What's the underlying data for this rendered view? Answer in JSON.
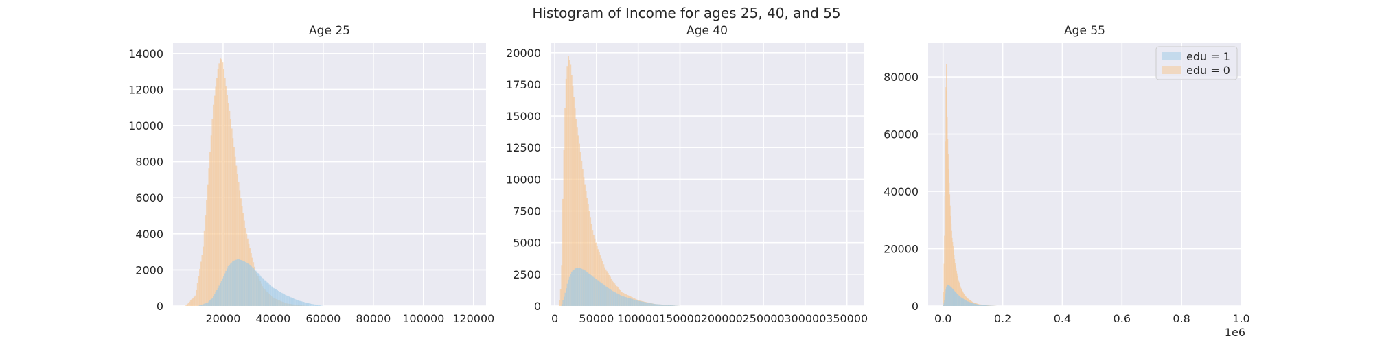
{
  "figure": {
    "title": "Histogram of Income for ages 25, 40, and 55"
  },
  "colors": {
    "panel_bg": "#eaeaf2",
    "grid": "#ffffff",
    "edu1": "#9ec9e6",
    "edu0": "#f5c58f",
    "text": "#262626"
  },
  "chart_data": [
    {
      "type": "bar",
      "title": "Age 25",
      "xlabel": "",
      "ylabel": "",
      "xlim": [
        0,
        125000
      ],
      "ylim": [
        0,
        14600
      ],
      "xticks": [
        20000,
        40000,
        60000,
        80000,
        100000,
        120000
      ],
      "xtick_labels": [
        "20000",
        "40000",
        "60000",
        "80000",
        "100000",
        "120000"
      ],
      "yticks": [
        0,
        2000,
        4000,
        6000,
        8000,
        10000,
        12000,
        14000
      ],
      "ytick_labels": [
        "0",
        "2000",
        "4000",
        "6000",
        "8000",
        "10000",
        "12000",
        "14000"
      ],
      "grid": true,
      "series": [
        {
          "key": "edu0",
          "x": [
            5000,
            9000,
            12000,
            14000,
            16000,
            18000,
            19000,
            20000,
            21000,
            23000,
            25000,
            27000,
            29000,
            31000,
            33000,
            36000,
            40000,
            45000,
            50000,
            55000
          ],
          "y": [
            0,
            600,
            3200,
            7000,
            11000,
            13200,
            13800,
            13400,
            12300,
            10300,
            8000,
            6000,
            4200,
            3000,
            1900,
            1000,
            450,
            150,
            40,
            0
          ]
        },
        {
          "key": "edu1",
          "x": [
            10000,
            14000,
            16000,
            18000,
            20000,
            22000,
            24000,
            26000,
            28000,
            30000,
            32000,
            34000,
            36000,
            38000,
            40000,
            45000,
            50000,
            55000,
            60000
          ],
          "y": [
            0,
            200,
            500,
            1000,
            1600,
            2200,
            2500,
            2600,
            2500,
            2350,
            2100,
            1800,
            1500,
            1250,
            1000,
            600,
            300,
            120,
            0
          ]
        }
      ]
    },
    {
      "type": "bar",
      "title": "Age 40",
      "xlabel": "",
      "ylabel": "",
      "xlim": [
        -5000,
        370000
      ],
      "ylim": [
        0,
        20800
      ],
      "xticks": [
        0,
        50000,
        100000,
        150000,
        200000,
        250000,
        300000,
        350000
      ],
      "xtick_labels": [
        "0",
        "50000",
        "100000",
        "150000",
        "200000",
        "250000",
        "300000",
        "350000"
      ],
      "yticks": [
        0,
        2500,
        5000,
        7500,
        10000,
        12500,
        15000,
        17500,
        20000
      ],
      "ytick_labels": [
        "0",
        "2500",
        "5000",
        "7500",
        "10000",
        "12500",
        "15000",
        "17500",
        "20000"
      ],
      "grid": true,
      "series": [
        {
          "key": "edu0",
          "x": [
            5000,
            8000,
            10000,
            13000,
            16000,
            19000,
            22000,
            25000,
            30000,
            35000,
            40000,
            45000,
            50000,
            60000,
            70000,
            80000,
            100000,
            120000,
            150000
          ],
          "y": [
            0,
            2000,
            10000,
            17500,
            19800,
            19000,
            17000,
            15000,
            12500,
            10000,
            8000,
            6000,
            4800,
            3000,
            1900,
            1100,
            450,
            150,
            0
          ]
        },
        {
          "key": "edu1",
          "x": [
            8000,
            12000,
            16000,
            20000,
            25000,
            30000,
            35000,
            40000,
            50000,
            60000,
            70000,
            80000,
            100000,
            120000,
            150000
          ],
          "y": [
            0,
            900,
            2000,
            2700,
            3000,
            3000,
            2850,
            2600,
            2100,
            1600,
            1150,
            800,
            400,
            150,
            0
          ]
        }
      ]
    },
    {
      "type": "bar",
      "title": "Age 55",
      "xlabel": "",
      "ylabel": "",
      "xlim": [
        -50000,
        1000000
      ],
      "ylim": [
        0,
        92000
      ],
      "xticks": [
        0,
        200000,
        400000,
        600000,
        800000,
        1000000
      ],
      "xtick_labels": [
        "0.0",
        "0.2",
        "0.4",
        "0.6",
        "0.8",
        "1.0"
      ],
      "x_offset_label": "1e6",
      "yticks": [
        0,
        20000,
        40000,
        60000,
        80000
      ],
      "ytick_labels": [
        "0",
        "20000",
        "40000",
        "60000",
        "80000"
      ],
      "grid": true,
      "legend": {
        "placement": "top-right",
        "entries": [
          {
            "key": "edu1",
            "label": "edu = 1"
          },
          {
            "key": "edu0",
            "label": "edu = 0"
          }
        ]
      },
      "series": [
        {
          "key": "edu0",
          "x": [
            0,
            5000,
            10000,
            15000,
            20000,
            25000,
            30000,
            40000,
            50000,
            60000,
            70000,
            80000,
            100000,
            120000,
            150000,
            180000
          ],
          "y": [
            0,
            30000,
            88000,
            60000,
            44000,
            32000,
            24000,
            15000,
            9500,
            6200,
            4200,
            2800,
            1300,
            600,
            200,
            0
          ]
        },
        {
          "key": "edu1",
          "x": [
            0,
            5000,
            10000,
            15000,
            20000,
            30000,
            40000,
            50000,
            60000,
            80000,
            100000,
            120000,
            150000,
            180000
          ],
          "y": [
            0,
            2500,
            6500,
            7500,
            7200,
            6200,
            5000,
            3900,
            3000,
            1700,
            900,
            450,
            150,
            0
          ]
        }
      ]
    }
  ]
}
